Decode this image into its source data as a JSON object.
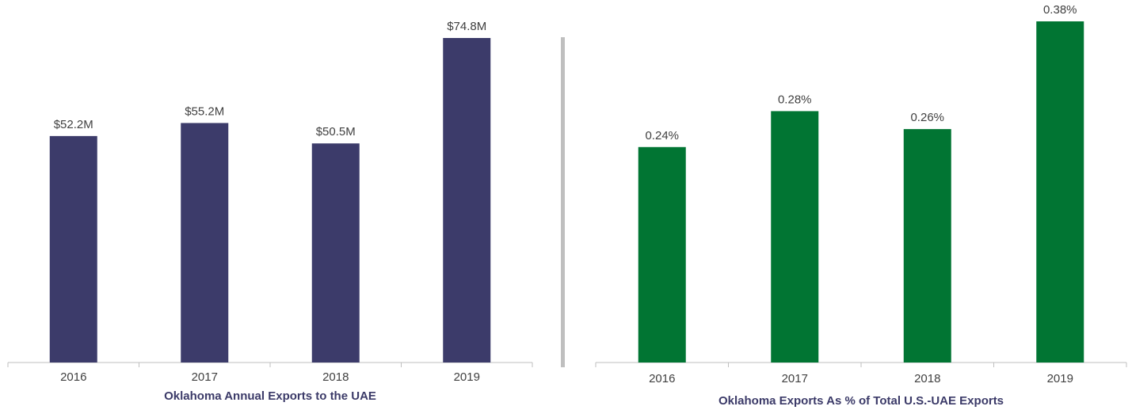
{
  "chart_data": [
    {
      "type": "bar",
      "title": "Oklahoma Annual Exports to the UAE",
      "categories": [
        "2016",
        "2017",
        "2018",
        "2019"
      ],
      "values": [
        52.2,
        55.2,
        50.5,
        74.8
      ],
      "value_labels": [
        "$52.2M",
        "$55.2M",
        "$50.5M",
        "$74.8M"
      ],
      "color": "#3c3b6a"
    },
    {
      "type": "bar",
      "title": "Oklahoma Exports As % of Total U.S.-UAE Exports",
      "categories": [
        "2016",
        "2017",
        "2018",
        "2019"
      ],
      "values": [
        0.24,
        0.28,
        0.26,
        0.38
      ],
      "value_labels": [
        "0.24%",
        "0.28%",
        "0.26%",
        "0.38%"
      ],
      "color": "#017533"
    }
  ]
}
